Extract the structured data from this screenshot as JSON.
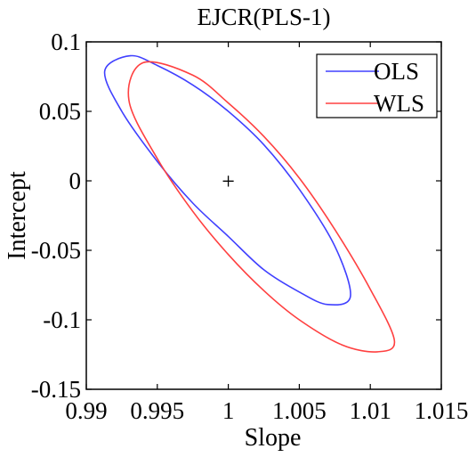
{
  "chart_data": {
    "type": "line",
    "title": "EJCR(PLS-1)",
    "xlabel": "Slope",
    "ylabel": "Intercept",
    "xlim": [
      0.99,
      1.015
    ],
    "ylim": [
      -0.15,
      0.1
    ],
    "xticks": [
      "0.99",
      "0.995",
      "1",
      "1.005",
      "1.01",
      "1.015"
    ],
    "xtick_values": [
      0.99,
      0.995,
      1.0,
      1.005,
      1.01,
      1.015
    ],
    "yticks": [
      "0.1",
      "0.05",
      "0",
      "-0.05",
      "-0.1",
      "-0.15"
    ],
    "ytick_values": [
      0.1,
      0.05,
      0,
      -0.05,
      -0.1,
      -0.15
    ],
    "grid": false,
    "legend_position": "top-right",
    "marker": {
      "label": "+",
      "x": 1.0,
      "y": 0.0
    },
    "series": [
      {
        "name": "OLS",
        "color": "#4040ff",
        "points": [
          [
            0.9931,
            0.09
          ],
          [
            0.995,
            0.083
          ],
          [
            0.9975,
            0.069
          ],
          [
            1.0,
            0.05
          ],
          [
            1.0025,
            0.026
          ],
          [
            1.005,
            -0.006
          ],
          [
            1.0075,
            -0.047
          ],
          [
            1.0086,
            -0.083
          ],
          [
            1.007,
            -0.089
          ],
          [
            1.005,
            -0.08
          ],
          [
            1.0025,
            -0.064
          ],
          [
            1.0,
            -0.04
          ],
          [
            0.9975,
            -0.016
          ],
          [
            0.995,
            0.014
          ],
          [
            0.9925,
            0.05
          ],
          [
            0.9913,
            0.079
          ],
          [
            0.9931,
            0.09
          ]
        ]
      },
      {
        "name": "WLS",
        "color": "#ff4040",
        "points": [
          [
            0.994,
            0.085
          ],
          [
            0.9975,
            0.076
          ],
          [
            1.0,
            0.056
          ],
          [
            1.0025,
            0.032
          ],
          [
            1.005,
            0.002
          ],
          [
            1.0075,
            -0.035
          ],
          [
            1.01,
            -0.078
          ],
          [
            1.0117,
            -0.115
          ],
          [
            1.0105,
            -0.123
          ],
          [
            1.008,
            -0.118
          ],
          [
            1.005,
            -0.1
          ],
          [
            1.0025,
            -0.079
          ],
          [
            1.0,
            -0.053
          ],
          [
            0.9975,
            -0.022
          ],
          [
            0.995,
            0.016
          ],
          [
            0.993,
            0.058
          ],
          [
            0.994,
            0.085
          ]
        ]
      }
    ]
  }
}
